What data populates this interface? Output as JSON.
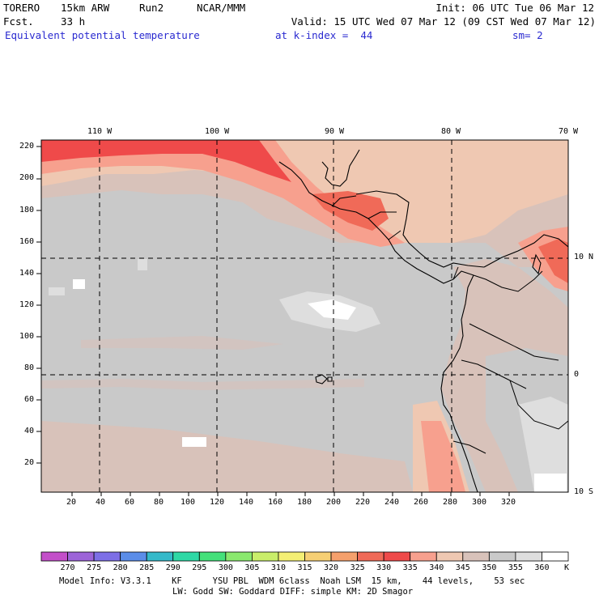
{
  "header": {
    "model": "TORERO",
    "resolution": "15km ARW",
    "run": "Run2",
    "org": "NCAR/MMM",
    "init": "Init: 06 UTC Tue 06 Mar 12",
    "fcst_label": "Fcst.",
    "fcst_hours": "33 h",
    "valid": "Valid: 15 UTC Wed 07 Mar 12 (09 CST Wed 07 Mar 12)",
    "field": "Equivalent potential temperature",
    "level": "at k-index =  44",
    "smoothing": "sm= 2"
  },
  "map": {
    "top_lon_labels": [
      "110 W",
      "100 W",
      "90 W",
      "80 W",
      "70 W"
    ],
    "left_y_labels": [
      "220",
      "200",
      "180",
      "160",
      "140",
      "120",
      "100",
      "80",
      "60",
      "40",
      "20"
    ],
    "bottom_x_labels": [
      "20",
      "40",
      "60",
      "80",
      "100",
      "120",
      "140",
      "160",
      "180",
      "200",
      "220",
      "240",
      "260",
      "280",
      "300",
      "320"
    ],
    "right_lat_labels": [
      "10 N",
      "0",
      "10 S"
    ]
  },
  "colorbar": {
    "unit": "K",
    "values": [
      "270",
      "275",
      "280",
      "285",
      "290",
      "295",
      "300",
      "305",
      "310",
      "315",
      "320",
      "325",
      "330",
      "335",
      "340",
      "345",
      "350",
      "355",
      "360"
    ],
    "colors": [
      "#c34fc9",
      "#9d64d8",
      "#7d6fe6",
      "#5b8de8",
      "#35b9c9",
      "#2ed8a5",
      "#44e07a",
      "#8ae86e",
      "#c9ee6a",
      "#f4ef74",
      "#f6cf74",
      "#f5a06c",
      "#f06a58",
      "#ef4a4a",
      "#f7a08e",
      "#efc8b2",
      "#d8c2ba",
      "#c9c9c9",
      "#dedede",
      "#ffffff"
    ]
  },
  "footer": {
    "line1": "Model Info: V3.3.1    KF      YSU PBL  WDM 6class  Noah LSM  15 km,    44 levels,    53 sec",
    "line2": "LW: Godd SW: Goddard DIFF: simple KM: 2D Smagor"
  }
}
